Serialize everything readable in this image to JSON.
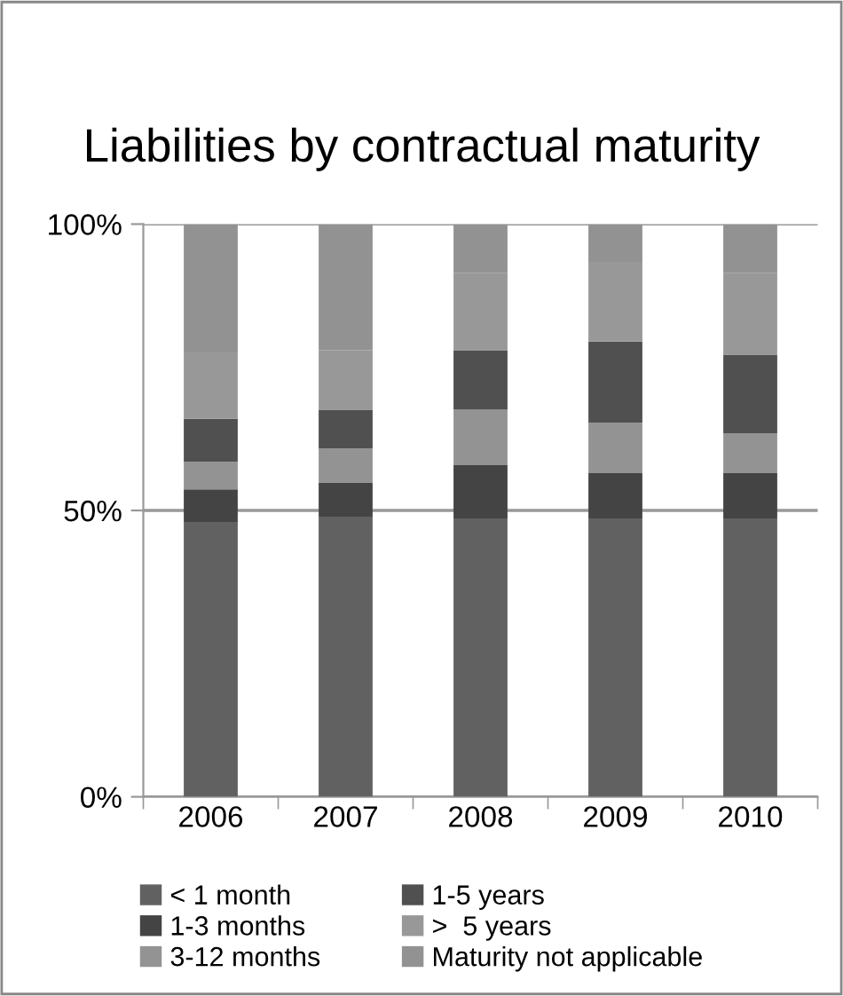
{
  "chart_data": {
    "type": "bar",
    "title": "Liabilities by contractual maturity",
    "stacked": true,
    "categories": [
      "2006",
      "2007",
      "2008",
      "2009",
      "2010"
    ],
    "series": [
      {
        "name": "< 1 month",
        "color": "#616161",
        "values": [
          48.0,
          48.9,
          48.6,
          48.6,
          48.6
        ]
      },
      {
        "name": "1-3 months",
        "color": "#444444",
        "values": [
          5.7,
          6.0,
          9.3,
          7.9,
          7.9
        ]
      },
      {
        "name": "3-12 months",
        "color": "#939393",
        "values": [
          4.8,
          5.9,
          9.7,
          8.8,
          7.0
        ]
      },
      {
        "name": "1-5 years",
        "color": "#505050",
        "values": [
          7.5,
          6.8,
          10.4,
          14.2,
          13.7
        ]
      },
      {
        "name": ">  5 years",
        "color": "#989898",
        "values": [
          11.6,
          10.4,
          13.5,
          13.9,
          14.3
        ]
      },
      {
        "name": "Maturity not applicable",
        "color": "#929292",
        "values": [
          22.4,
          22.0,
          8.5,
          6.6,
          8.5
        ]
      }
    ],
    "ylim": [
      0,
      100
    ],
    "yticks": [
      {
        "value": 0,
        "label": "0%"
      },
      {
        "value": 50,
        "label": "50%"
      },
      {
        "value": 100,
        "label": "100%"
      }
    ],
    "grid": "y",
    "legend": "bottom"
  }
}
